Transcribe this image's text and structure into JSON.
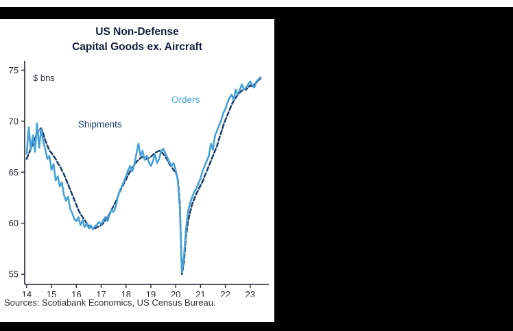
{
  "chart": {
    "title_line1": "US Non-Defense",
    "title_line2": "Capital Goods ex. Aircraft",
    "unit_label": "$ bns",
    "source": "Sources: Scotiabank Economics, US Census Bureau.",
    "colors": {
      "orders": "#45a1d8",
      "shipments": "#1c3e6e",
      "axis": "#1f2430",
      "title": "#141c3a"
    }
  },
  "chart_data": {
    "type": "line",
    "title": "US Non-Defense Capital Goods ex. Aircraft",
    "xlabel": "",
    "ylabel": "$ bns",
    "ylim": [
      54,
      75.9
    ],
    "yticks": [
      55,
      60,
      65,
      70,
      75
    ],
    "xlim": [
      2013.92,
      2023.75
    ],
    "xticks": [
      2014,
      2015,
      2016,
      2017,
      2018,
      2019,
      2020,
      2021,
      2022,
      2023
    ],
    "xtick_labels": [
      "14",
      "15",
      "16",
      "17",
      "18",
      "19",
      "20",
      "21",
      "22",
      "23"
    ],
    "x_start": 2014.0,
    "frequency": "monthly",
    "grid": false,
    "legend_position": "inline-annotations",
    "axis_color": "#1f2430",
    "series": [
      {
        "name": "Shipments",
        "style": "dashed",
        "color": "#1c3e6e",
        "values": [
          66.3,
          66.8,
          67.3,
          67.8,
          68.3,
          68.8,
          69.1,
          69.3,
          68.8,
          68.1,
          67.6,
          67.1,
          66.9,
          66.6,
          66.3,
          65.9,
          65.6,
          65.2,
          64.8,
          64.3,
          63.8,
          63.3,
          62.8,
          62.3,
          61.8,
          61.3,
          60.9,
          60.6,
          60.3,
          60.0,
          59.8,
          59.6,
          59.5,
          59.5,
          59.6,
          59.7,
          59.8,
          60.0,
          60.3,
          60.6,
          60.9,
          61.3,
          61.7,
          62.1,
          62.6,
          63.1,
          63.5,
          63.9,
          64.3,
          64.7,
          65.1,
          65.4,
          65.7,
          66.0,
          66.2,
          66.4,
          66.5,
          66.4,
          66.3,
          66.4,
          66.5,
          66.7,
          66.9,
          67.0,
          67.1,
          67.0,
          66.8,
          66.5,
          66.2,
          65.8,
          65.5,
          65.2,
          65.0,
          64.4,
          62.0,
          55.0,
          56.2,
          58.8,
          60.2,
          61.1,
          61.9,
          62.4,
          62.9,
          63.3,
          63.7,
          64.1,
          64.6,
          65.1,
          65.6,
          66.1,
          66.6,
          67.1,
          67.6,
          68.3,
          68.9,
          69.6,
          70.1,
          70.6,
          71.1,
          71.6,
          72.0,
          72.3,
          72.6,
          72.8,
          73.0,
          73.2,
          73.1,
          73.3,
          73.5,
          73.4,
          73.6,
          73.8,
          74.0,
          74.2
        ]
      },
      {
        "name": "Orders",
        "style": "solid",
        "color": "#45a1d8",
        "values": [
          66.8,
          69.4,
          67.2,
          68.6,
          67.0,
          69.8,
          67.4,
          69.2,
          68.0,
          67.2,
          66.3,
          66.6,
          65.2,
          65.8,
          64.2,
          64.6,
          63.6,
          64.0,
          62.8,
          62.2,
          62.6,
          61.4,
          61.0,
          60.4,
          60.2,
          60.6,
          59.8,
          60.3,
          59.6,
          60.0,
          59.5,
          59.8,
          59.4,
          59.7,
          59.9,
          60.1,
          59.9,
          60.3,
          60.6,
          60.2,
          60.8,
          61.3,
          61.1,
          61.6,
          62.6,
          63.2,
          63.6,
          64.1,
          64.6,
          65.2,
          65.6,
          65.1,
          65.7,
          66.8,
          67.8,
          66.6,
          67.1,
          66.2,
          66.6,
          66.0,
          65.6,
          66.1,
          66.7,
          65.9,
          66.3,
          67.1,
          67.3,
          66.9,
          66.4,
          66.0,
          65.6,
          65.9,
          65.2,
          64.2,
          61.5,
          55.2,
          56.8,
          59.5,
          61.2,
          62.0,
          62.6,
          63.1,
          63.4,
          63.9,
          64.4,
          65.1,
          65.6,
          66.1,
          66.6,
          67.8,
          67.2,
          68.6,
          69.1,
          69.6,
          70.1,
          70.8,
          71.2,
          71.8,
          72.3,
          72.6,
          72.1,
          73.1,
          72.6,
          73.1,
          73.6,
          73.1,
          73.3,
          73.6,
          73.9,
          73.5,
          73.3,
          73.9,
          74.1,
          74.3
        ]
      }
    ],
    "annotations": [
      {
        "text": "Orders",
        "x": 2020.4,
        "y": 71.8,
        "color": "#45a1d8"
      },
      {
        "text": "Shipments",
        "x": 2016.95,
        "y": 69.4,
        "color": "#1c3e6e"
      }
    ]
  }
}
